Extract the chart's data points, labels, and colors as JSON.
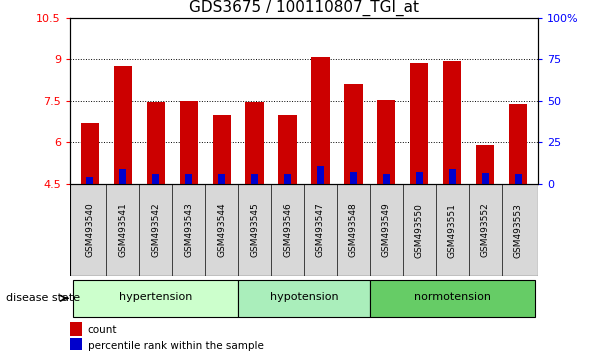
{
  "title": "GDS3675 / 100110807_TGI_at",
  "samples": [
    "GSM493540",
    "GSM493541",
    "GSM493542",
    "GSM493543",
    "GSM493544",
    "GSM493545",
    "GSM493546",
    "GSM493547",
    "GSM493548",
    "GSM493549",
    "GSM493550",
    "GSM493551",
    "GSM493552",
    "GSM493553"
  ],
  "count_values": [
    6.7,
    8.75,
    7.45,
    7.5,
    7.0,
    7.45,
    7.0,
    9.1,
    8.1,
    7.55,
    8.85,
    8.95,
    5.9,
    7.4
  ],
  "percentile_values": [
    4.75,
    5.05,
    4.85,
    4.85,
    4.85,
    4.85,
    4.85,
    5.15,
    4.95,
    4.85,
    4.95,
    5.05,
    4.9,
    4.85
  ],
  "ymin": 4.5,
  "ymax": 10.5,
  "yticks": [
    4.5,
    6.0,
    7.5,
    9.0,
    10.5
  ],
  "yticklabels": [
    "4.5",
    "6",
    "7.5",
    "9",
    "10.5"
  ],
  "right_yticks": [
    0,
    25,
    50,
    75,
    100
  ],
  "group_colors": {
    "hypertension": "#ccffcc",
    "hypotension": "#aaeebb",
    "normotension": "#66cc66"
  },
  "bar_color": "#cc0000",
  "percentile_color": "#0000cc",
  "bar_bottom": 4.5,
  "disease_state_label": "disease state",
  "legend_count": "count",
  "legend_percentile": "percentile rank within the sample",
  "tick_fontsize": 8,
  "bar_width": 0.55,
  "group_ranges": [
    [
      "hypertension",
      0,
      4
    ],
    [
      "hypotension",
      5,
      8
    ],
    [
      "normotension",
      9,
      13
    ]
  ]
}
